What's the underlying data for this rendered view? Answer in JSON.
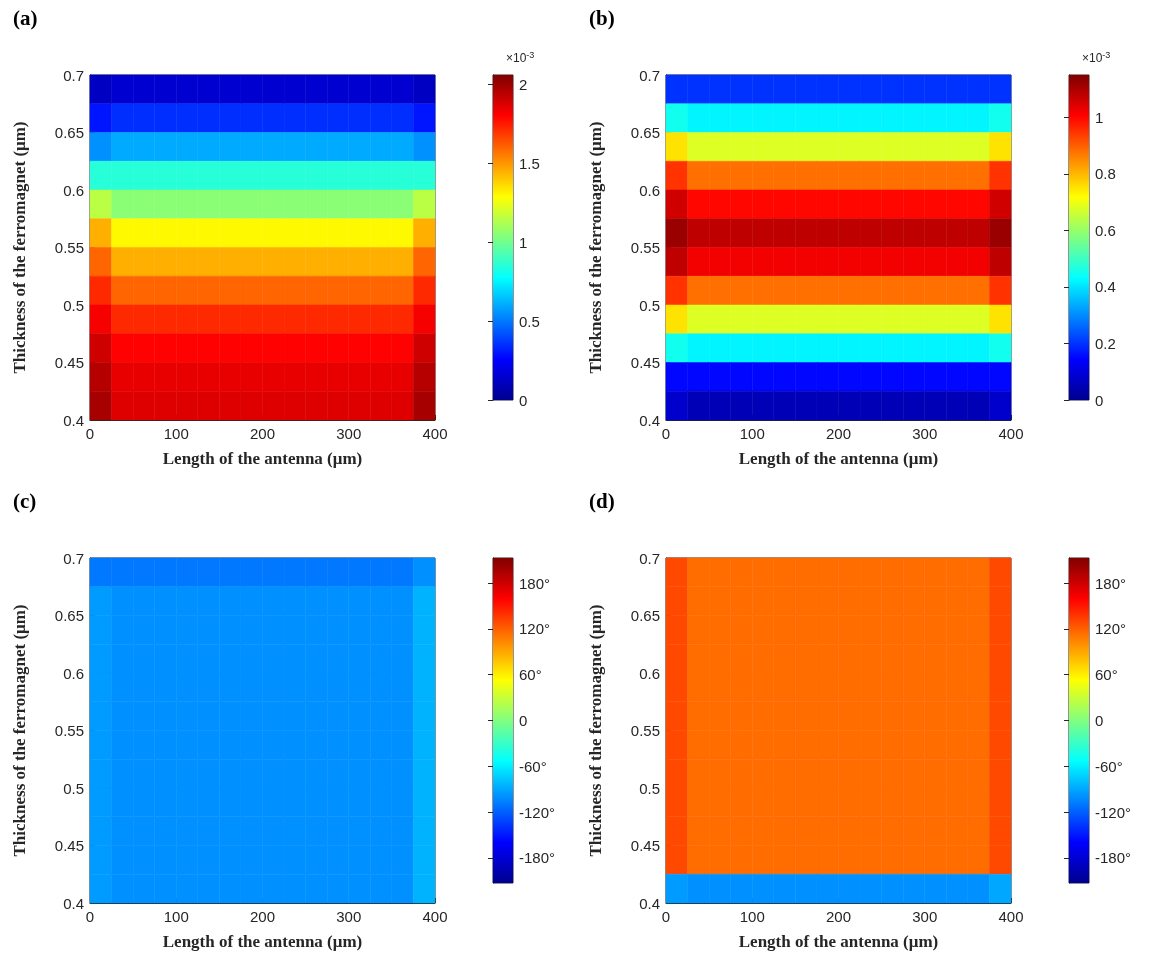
{
  "chart_data": [
    {
      "type": "heatmap",
      "title": "(a)",
      "xlabel": "Length of the antenna (μm)",
      "ylabel": "Thickness of the ferromagnet (μm)",
      "clabel": "×10$^{-3}$",
      "xlim": [
        0,
        400
      ],
      "xticks": [
        0,
        100,
        200,
        300,
        400
      ],
      "ylim": [
        0.4,
        0.7
      ],
      "yticks": [
        0.4,
        0.45,
        0.5,
        0.55,
        0.6,
        0.65,
        0.7
      ],
      "clim": [
        0,
        2.06
      ],
      "cticks": [
        0,
        0.5,
        1,
        1.5,
        2
      ],
      "cells": [
        [
          0.12,
          0.15,
          0.15,
          0.15,
          0.15,
          0.15,
          0.15,
          0.15,
          0.15,
          0.15,
          0.15,
          0.15,
          0.15,
          0.15,
          0.15,
          0.12
        ],
        [
          0.3,
          0.35,
          0.35,
          0.35,
          0.35,
          0.35,
          0.35,
          0.35,
          0.35,
          0.35,
          0.35,
          0.35,
          0.35,
          0.35,
          0.35,
          0.3
        ],
        [
          0.55,
          0.6,
          0.6,
          0.6,
          0.6,
          0.6,
          0.6,
          0.6,
          0.6,
          0.6,
          0.6,
          0.6,
          0.6,
          0.6,
          0.6,
          0.55
        ],
        [
          0.85,
          0.85,
          0.85,
          0.85,
          0.85,
          0.85,
          0.85,
          0.85,
          0.85,
          0.85,
          0.85,
          0.85,
          0.85,
          0.85,
          0.85,
          0.85
        ],
        [
          1.15,
          1.05,
          1.05,
          1.05,
          1.05,
          1.05,
          1.05,
          1.05,
          1.05,
          1.05,
          1.05,
          1.05,
          1.05,
          1.05,
          1.05,
          1.15
        ],
        [
          1.45,
          1.3,
          1.3,
          1.3,
          1.3,
          1.3,
          1.3,
          1.3,
          1.3,
          1.3,
          1.3,
          1.3,
          1.3,
          1.3,
          1.3,
          1.45
        ],
        [
          1.6,
          1.45,
          1.45,
          1.45,
          1.45,
          1.45,
          1.45,
          1.45,
          1.45,
          1.45,
          1.45,
          1.45,
          1.45,
          1.45,
          1.45,
          1.6
        ],
        [
          1.72,
          1.6,
          1.6,
          1.6,
          1.6,
          1.6,
          1.6,
          1.6,
          1.6,
          1.6,
          1.6,
          1.6,
          1.6,
          1.6,
          1.6,
          1.72
        ],
        [
          1.82,
          1.72,
          1.72,
          1.72,
          1.72,
          1.72,
          1.72,
          1.72,
          1.72,
          1.72,
          1.72,
          1.72,
          1.72,
          1.72,
          1.72,
          1.82
        ],
        [
          1.9,
          1.8,
          1.8,
          1.8,
          1.8,
          1.8,
          1.8,
          1.8,
          1.8,
          1.8,
          1.8,
          1.8,
          1.8,
          1.8,
          1.8,
          1.9
        ],
        [
          1.95,
          1.85,
          1.85,
          1.85,
          1.85,
          1.85,
          1.85,
          1.85,
          1.85,
          1.85,
          1.85,
          1.85,
          1.85,
          1.85,
          1.85,
          1.95
        ],
        [
          1.98,
          1.87,
          1.87,
          1.87,
          1.87,
          1.87,
          1.87,
          1.87,
          1.87,
          1.87,
          1.87,
          1.87,
          1.87,
          1.87,
          1.87,
          1.98
        ]
      ]
    },
    {
      "type": "heatmap",
      "title": "(b)",
      "xlabel": "Length of the antenna (μm)",
      "ylabel": "Thickness of the ferromagnet (μm)",
      "clabel": "×10$^{-3}$",
      "xlim": [
        0,
        400
      ],
      "xticks": [
        0,
        100,
        200,
        300,
        400
      ],
      "ylim": [
        0.4,
        0.7
      ],
      "yticks": [
        0.4,
        0.45,
        0.5,
        0.55,
        0.6,
        0.65,
        0.7
      ],
      "clim": [
        0,
        1.15
      ],
      "cticks": [
        0,
        0.2,
        0.4,
        0.6,
        0.8,
        1
      ],
      "cells": [
        [
          0.2,
          0.2,
          0.2,
          0.2,
          0.2,
          0.2,
          0.2,
          0.2,
          0.2,
          0.2,
          0.2,
          0.2,
          0.2,
          0.2,
          0.2,
          0.2
        ],
        [
          0.45,
          0.42,
          0.42,
          0.42,
          0.42,
          0.42,
          0.42,
          0.42,
          0.42,
          0.42,
          0.42,
          0.42,
          0.42,
          0.42,
          0.42,
          0.45
        ],
        [
          0.75,
          0.68,
          0.68,
          0.68,
          0.68,
          0.68,
          0.68,
          0.68,
          0.68,
          0.68,
          0.68,
          0.68,
          0.68,
          0.68,
          0.68,
          0.75
        ],
        [
          0.95,
          0.88,
          0.88,
          0.88,
          0.88,
          0.88,
          0.88,
          0.88,
          0.88,
          0.88,
          0.88,
          0.88,
          0.88,
          0.88,
          0.88,
          0.95
        ],
        [
          1.06,
          1,
          1,
          1,
          1,
          1,
          1,
          1,
          1,
          1,
          1,
          1,
          1,
          1,
          1,
          1.06
        ],
        [
          1.12,
          1.08,
          1.08,
          1.08,
          1.08,
          1.08,
          1.08,
          1.08,
          1.08,
          1.08,
          1.08,
          1.08,
          1.08,
          1.08,
          1.08,
          1.12
        ],
        [
          1.08,
          1.02,
          1.02,
          1.02,
          1.02,
          1.02,
          1.02,
          1.02,
          1.02,
          1.02,
          1.02,
          1.02,
          1.02,
          1.02,
          1.02,
          1.08
        ],
        [
          0.95,
          0.88,
          0.88,
          0.88,
          0.88,
          0.88,
          0.88,
          0.88,
          0.88,
          0.88,
          0.88,
          0.88,
          0.88,
          0.88,
          0.88,
          0.95
        ],
        [
          0.75,
          0.68,
          0.68,
          0.68,
          0.68,
          0.68,
          0.68,
          0.68,
          0.68,
          0.68,
          0.68,
          0.68,
          0.68,
          0.68,
          0.68,
          0.75
        ],
        [
          0.45,
          0.42,
          0.42,
          0.42,
          0.42,
          0.42,
          0.42,
          0.42,
          0.42,
          0.42,
          0.42,
          0.42,
          0.42,
          0.42,
          0.42,
          0.45
        ],
        [
          0.15,
          0.15,
          0.15,
          0.15,
          0.15,
          0.15,
          0.15,
          0.15,
          0.15,
          0.15,
          0.15,
          0.15,
          0.15,
          0.15,
          0.15,
          0.15
        ],
        [
          0.08,
          0.05,
          0.05,
          0.05,
          0.05,
          0.05,
          0.05,
          0.05,
          0.05,
          0.05,
          0.05,
          0.05,
          0.05,
          0.05,
          0.05,
          0.08
        ]
      ]
    },
    {
      "type": "heatmap",
      "title": "(c)",
      "xlabel": "Length of the antenna (μm)",
      "ylabel": "Thickness of the ferromagnet (μm)",
      "xlim": [
        0,
        400
      ],
      "xticks": [
        0,
        100,
        200,
        300,
        400
      ],
      "ylim": [
        0.4,
        0.7
      ],
      "yticks": [
        0.4,
        0.45,
        0.5,
        0.55,
        0.6,
        0.65,
        0.7
      ],
      "clim": [
        -213,
        213
      ],
      "cticks": [
        {
          "value": -180,
          "label": "-180°"
        },
        {
          "value": -120,
          "label": "-120°"
        },
        {
          "value": -60,
          "label": "-60°"
        },
        0,
        {
          "value": 60,
          "label": "60°"
        },
        {
          "value": 120,
          "label": "120°"
        },
        {
          "value": 180,
          "label": "180°"
        }
      ],
      "cells": [
        [
          -110,
          -110,
          -110,
          -110,
          -110,
          -110,
          -110,
          -110,
          -110,
          -110,
          -110,
          -110,
          -110,
          -110,
          -110,
          -100
        ],
        [
          -95,
          -100,
          -100,
          -100,
          -100,
          -100,
          -100,
          -100,
          -100,
          -100,
          -100,
          -100,
          -100,
          -100,
          -100,
          -85
        ],
        [
          -95,
          -100,
          -100,
          -100,
          -100,
          -100,
          -100,
          -100,
          -100,
          -100,
          -100,
          -100,
          -100,
          -100,
          -100,
          -85
        ],
        [
          -95,
          -100,
          -100,
          -100,
          -100,
          -100,
          -100,
          -100,
          -100,
          -100,
          -100,
          -100,
          -100,
          -100,
          -100,
          -85
        ],
        [
          -95,
          -100,
          -100,
          -100,
          -100,
          -100,
          -100,
          -100,
          -100,
          -100,
          -100,
          -100,
          -100,
          -100,
          -100,
          -85
        ],
        [
          -95,
          -100,
          -100,
          -100,
          -100,
          -100,
          -100,
          -100,
          -100,
          -100,
          -100,
          -100,
          -100,
          -100,
          -100,
          -85
        ],
        [
          -95,
          -100,
          -100,
          -100,
          -100,
          -100,
          -100,
          -100,
          -100,
          -100,
          -100,
          -100,
          -100,
          -100,
          -100,
          -85
        ],
        [
          -95,
          -100,
          -100,
          -100,
          -100,
          -100,
          -100,
          -100,
          -100,
          -100,
          -100,
          -100,
          -100,
          -100,
          -100,
          -85
        ],
        [
          -95,
          -100,
          -100,
          -100,
          -100,
          -100,
          -100,
          -100,
          -100,
          -100,
          -100,
          -100,
          -100,
          -100,
          -100,
          -85
        ],
        [
          -95,
          -100,
          -100,
          -100,
          -100,
          -100,
          -100,
          -100,
          -100,
          -100,
          -100,
          -100,
          -100,
          -100,
          -100,
          -85
        ],
        [
          -95,
          -100,
          -100,
          -100,
          -100,
          -100,
          -100,
          -100,
          -100,
          -100,
          -100,
          -100,
          -100,
          -100,
          -100,
          -85
        ],
        [
          -95,
          -100,
          -100,
          -100,
          -100,
          -100,
          -100,
          -100,
          -100,
          -100,
          -100,
          -100,
          -100,
          -100,
          -100,
          -85
        ]
      ]
    },
    {
      "type": "heatmap",
      "title": "(d)",
      "xlabel": "Length of the antenna (μm)",
      "ylabel": "Thickness of the ferromagnet (μm)",
      "xlim": [
        0,
        400
      ],
      "xticks": [
        0,
        100,
        200,
        300,
        400
      ],
      "ylim": [
        0.4,
        0.7
      ],
      "yticks": [
        0.4,
        0.45,
        0.5,
        0.55,
        0.6,
        0.65,
        0.7
      ],
      "clim": [
        -213,
        213
      ],
      "cticks": [
        {
          "value": -180,
          "label": "-180°"
        },
        {
          "value": -120,
          "label": "-120°"
        },
        {
          "value": -60,
          "label": "-60°"
        },
        0,
        {
          "value": 60,
          "label": "60°"
        },
        {
          "value": 120,
          "label": "120°"
        },
        {
          "value": 180,
          "label": "180°"
        }
      ],
      "cells": [
        [
          130,
          115,
          115,
          115,
          115,
          115,
          115,
          115,
          115,
          115,
          115,
          115,
          115,
          115,
          115,
          130
        ],
        [
          130,
          115,
          115,
          115,
          115,
          115,
          115,
          115,
          115,
          115,
          115,
          115,
          115,
          115,
          115,
          130
        ],
        [
          130,
          115,
          115,
          115,
          115,
          115,
          115,
          115,
          115,
          115,
          115,
          115,
          115,
          115,
          115,
          130
        ],
        [
          130,
          115,
          115,
          115,
          115,
          115,
          115,
          115,
          115,
          115,
          115,
          115,
          115,
          115,
          115,
          130
        ],
        [
          130,
          115,
          115,
          115,
          115,
          115,
          115,
          115,
          115,
          115,
          115,
          115,
          115,
          115,
          115,
          130
        ],
        [
          130,
          115,
          115,
          115,
          115,
          115,
          115,
          115,
          115,
          115,
          115,
          115,
          115,
          115,
          115,
          130
        ],
        [
          130,
          115,
          115,
          115,
          115,
          115,
          115,
          115,
          115,
          115,
          115,
          115,
          115,
          115,
          115,
          130
        ],
        [
          130,
          115,
          115,
          115,
          115,
          115,
          115,
          115,
          115,
          115,
          115,
          115,
          115,
          115,
          115,
          130
        ],
        [
          130,
          115,
          115,
          115,
          115,
          115,
          115,
          115,
          115,
          115,
          115,
          115,
          115,
          115,
          115,
          130
        ],
        [
          130,
          115,
          115,
          115,
          115,
          115,
          115,
          115,
          115,
          115,
          115,
          115,
          115,
          115,
          115,
          130
        ],
        [
          130,
          115,
          115,
          115,
          115,
          115,
          115,
          115,
          115,
          115,
          115,
          115,
          115,
          115,
          115,
          130
        ],
        [
          -95,
          -100,
          -100,
          -100,
          -100,
          -100,
          -100,
          -100,
          -100,
          -100,
          -100,
          -100,
          -100,
          -100,
          -100,
          -90
        ]
      ]
    }
  ]
}
